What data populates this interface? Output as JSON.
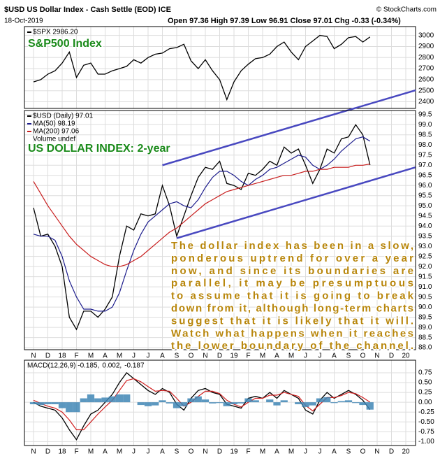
{
  "header": {
    "title": "$USD US Dollar Index - Cash Settle (EOD) ICE",
    "source": "© StockCharts.com",
    "date": "18-Oct-2019",
    "ohlc": "Open 97.36  High 97.39  Low 96.91  Close 97.01  Chg -0.33 (-0.34%)"
  },
  "chart_data": [
    {
      "type": "line",
      "label": "S&P500 Index",
      "legend_layout": "column",
      "ylim": [
        2340,
        3080
      ],
      "yticks": [
        2400,
        2500,
        2600,
        2700,
        2800,
        2900,
        3000
      ],
      "grid": true,
      "series": [
        {
          "name": "$SPX 2986.20",
          "color": "#000000",
          "values": [
            2580,
            2600,
            2650,
            2680,
            2750,
            2850,
            2620,
            2730,
            2750,
            2650,
            2650,
            2680,
            2700,
            2720,
            2780,
            2750,
            2800,
            2830,
            2840,
            2880,
            2890,
            2920,
            2770,
            2700,
            2780,
            2680,
            2600,
            2420,
            2580,
            2680,
            2740,
            2790,
            2800,
            2830,
            2900,
            2940,
            2850,
            2780,
            2900,
            2950,
            3000,
            2990,
            2880,
            2920,
            2980,
            2990,
            2940,
            2986.2,
            null,
            null,
            null,
            null,
            null
          ]
        }
      ]
    },
    {
      "type": "line",
      "label": "US DOLLAR INDEX: 2-year",
      "legend_layout": "column",
      "legend_extra": "Volume undef",
      "ylim": [
        87.9,
        99.7
      ],
      "grid": true,
      "categories": [
        "N",
        null,
        "D",
        null,
        "18",
        null,
        "F",
        null,
        "M",
        null,
        "A",
        null,
        "M",
        null,
        "J",
        null,
        "J",
        null,
        "A",
        null,
        "S",
        null,
        "O",
        null,
        "N",
        null,
        "D",
        null,
        "19",
        null,
        "F",
        null,
        "M",
        null,
        "A",
        null,
        "M",
        null,
        "J",
        null,
        "J",
        null,
        "A",
        null,
        "S",
        null,
        "O",
        null,
        "N",
        null,
        "D",
        null,
        "20"
      ],
      "yticks": [
        {
          "value": 88,
          "label": "88.0"
        },
        88.5,
        {
          "value": 89,
          "label": "89.0"
        },
        89.5,
        {
          "value": 90,
          "label": "90.0"
        },
        90.5,
        {
          "value": 91,
          "label": "91.0"
        },
        91.5,
        {
          "value": 92,
          "label": "92.0"
        },
        92.5,
        {
          "value": 93,
          "label": "93.0"
        },
        93.5,
        {
          "value": 94,
          "label": "94.0"
        },
        94.5,
        {
          "value": 95,
          "label": "95.0"
        },
        95.5,
        {
          "value": 96,
          "label": "96.0"
        },
        96.5,
        {
          "value": 97,
          "label": "97.0"
        },
        97.5,
        {
          "value": 98,
          "label": "98.0"
        },
        98.5,
        {
          "value": 99,
          "label": "99.0"
        },
        99.5
      ],
      "series": [
        {
          "name": "$USD (Daily) 97.01",
          "color": "#000000",
          "values": [
            94.9,
            93.5,
            93.6,
            93.0,
            92.0,
            89.5,
            88.9,
            89.8,
            89.8,
            89.5,
            89.9,
            90.5,
            92.5,
            94.0,
            93.8,
            94.6,
            94.5,
            94.6,
            96.0,
            95.0,
            93.5,
            94.5,
            95.5,
            96.4,
            96.9,
            96.8,
            97.2,
            96.1,
            96.0,
            95.8,
            96.6,
            96.5,
            96.8,
            97.2,
            97.0,
            97.9,
            97.6,
            97.8,
            97.0,
            96.1,
            96.8,
            97.8,
            97.6,
            98.3,
            98.4,
            99.0,
            98.5,
            97.01,
            null,
            null,
            null,
            null,
            null
          ]
        },
        {
          "name": "MA(50) 98.19",
          "color": "#1c1c8c",
          "values": [
            93.6,
            93.5,
            93.5,
            93.3,
            92.5,
            91.3,
            90.5,
            89.9,
            89.9,
            89.8,
            89.8,
            90.0,
            90.7,
            91.8,
            92.8,
            93.6,
            94.2,
            94.5,
            94.8,
            95.1,
            95.2,
            95.0,
            94.9,
            95.3,
            95.9,
            96.4,
            96.7,
            96.7,
            96.5,
            96.2,
            96.0,
            96.3,
            96.5,
            96.8,
            96.9,
            97.1,
            97.3,
            97.5,
            97.4,
            97.0,
            96.8,
            97.0,
            97.3,
            97.7,
            98.0,
            98.3,
            98.4,
            98.19,
            null,
            null,
            null,
            null,
            null
          ]
        },
        {
          "name": "MA(200) 97.06",
          "color": "#c81e1e",
          "values": [
            96.2,
            95.6,
            95.0,
            94.5,
            94.0,
            93.5,
            93.1,
            92.8,
            92.5,
            92.3,
            92.1,
            92.0,
            92.0,
            92.1,
            92.3,
            92.5,
            92.8,
            93.1,
            93.4,
            93.7,
            93.9,
            94.2,
            94.5,
            94.8,
            95.1,
            95.3,
            95.5,
            95.7,
            95.8,
            95.9,
            96.0,
            96.1,
            96.2,
            96.3,
            96.4,
            96.5,
            96.5,
            96.6,
            96.7,
            96.7,
            96.8,
            96.8,
            96.9,
            96.9,
            96.9,
            97.0,
            97.0,
            97.06,
            null,
            null,
            null,
            null,
            null
          ]
        }
      ],
      "trendlines": [
        {
          "color": "#4848c0",
          "values": [
            97.0,
            100.7
          ]
        },
        {
          "color": "#4848c0",
          "values": [
            93.4,
            96.9
          ]
        }
      ],
      "annotation": [
        "The dollar index has been in a slow,",
        "ponderous uptrend for over a year",
        "now, and since its boundaries are",
        "parallel, it may be presumptuous",
        "to assume that it is going to break",
        "down from it, although long-term charts",
        "suggest that it is likely that it will.",
        "Watch what happens when it reaches",
        "the lower boundary of the channel."
      ]
    },
    {
      "type": "line",
      "legend_layout": "row",
      "ylim": [
        -1.1,
        1.07
      ],
      "grid": true,
      "categories": [
        "N",
        null,
        "D",
        null,
        "18",
        null,
        "F",
        null,
        "M",
        null,
        "A",
        null,
        "M",
        null,
        "J",
        null,
        "J",
        null,
        "A",
        null,
        "S",
        null,
        "O",
        null,
        "N",
        null,
        "D",
        null,
        "19",
        null,
        "F",
        null,
        "M",
        null,
        "A",
        null,
        "M",
        null,
        "J",
        null,
        "J",
        null,
        "A",
        null,
        "S",
        null,
        "O",
        null,
        "N",
        null,
        "D",
        null,
        "20"
      ],
      "yticks": [
        {
          "value": -1,
          "label": "-1.00"
        },
        -0.75,
        {
          "value": -0.5,
          "label": "-0.50"
        },
        -0.25,
        {
          "value": 0,
          "label": "0.00"
        },
        0.25,
        {
          "value": 0.5,
          "label": "0.50"
        },
        0.75
      ],
      "series": [
        {
          "name": "MACD(12,26,9) -0.185,",
          "color": "#000000",
          "values": [
            0.0,
            -0.1,
            -0.15,
            -0.2,
            -0.4,
            -0.7,
            -0.95,
            -0.6,
            -0.3,
            -0.2,
            0.0,
            0.2,
            0.5,
            0.75,
            0.6,
            0.45,
            0.3,
            0.2,
            0.35,
            0.25,
            -0.05,
            -0.2,
            0.1,
            0.3,
            0.35,
            0.25,
            0.2,
            -0.05,
            -0.1,
            -0.15,
            0.1,
            0.15,
            0.1,
            0.25,
            0.1,
            0.3,
            0.2,
            0.1,
            -0.2,
            -0.3,
            0.05,
            0.25,
            0.1,
            0.2,
            0.3,
            0.2,
            0.05,
            -0.185,
            null,
            null,
            null,
            null,
            null
          ]
        },
        {
          "name": "0.002,",
          "color": "#d02020",
          "values": [
            0.05,
            -0.03,
            -0.1,
            -0.15,
            -0.25,
            -0.45,
            -0.7,
            -0.7,
            -0.5,
            -0.3,
            -0.12,
            0.05,
            0.3,
            0.55,
            0.6,
            0.52,
            0.4,
            0.28,
            0.3,
            0.28,
            0.1,
            -0.1,
            0.0,
            0.15,
            0.28,
            0.28,
            0.22,
            0.05,
            -0.05,
            -0.12,
            0.0,
            0.1,
            0.1,
            0.18,
            0.18,
            0.25,
            0.2,
            0.15,
            -0.08,
            -0.22,
            -0.05,
            0.12,
            0.12,
            0.17,
            0.25,
            0.22,
            0.12,
            0.002,
            null,
            null,
            null,
            null,
            null
          ]
        },
        {
          "name": "-0.187",
          "color": "#3f86b5",
          "style": "histogram",
          "values": [
            -0.05,
            -0.07,
            -0.05,
            -0.05,
            -0.15,
            -0.25,
            -0.25,
            0.1,
            0.2,
            0.1,
            0.12,
            0.15,
            0.2,
            0.2,
            0.0,
            -0.07,
            -0.1,
            -0.08,
            0.05,
            -0.03,
            -0.15,
            -0.1,
            0.1,
            0.15,
            0.07,
            -0.03,
            -0.02,
            -0.1,
            -0.05,
            -0.03,
            0.1,
            0.05,
            0.0,
            0.07,
            -0.08,
            0.05,
            0.0,
            -0.05,
            -0.12,
            -0.08,
            0.1,
            0.13,
            -0.02,
            0.03,
            0.05,
            -0.02,
            -0.07,
            -0.187,
            null,
            null,
            null,
            null,
            null
          ]
        }
      ]
    }
  ]
}
